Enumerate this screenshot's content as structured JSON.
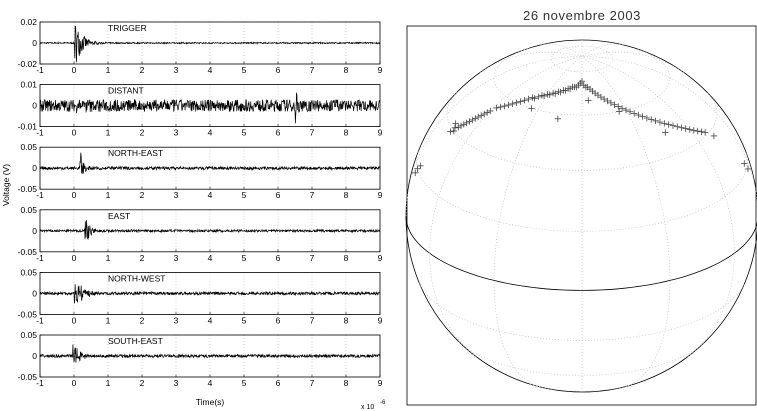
{
  "chart_data": [
    {
      "type": "line",
      "xlabel": "Time(s)",
      "ylabel": "Voltage (V)",
      "x_multiplier": "x 10",
      "x_multiplier_exp": "-6",
      "xlim": [
        -1,
        9
      ],
      "x_ticks": [
        "-1",
        "0",
        "1",
        "2",
        "3",
        "4",
        "5",
        "6",
        "7",
        "8",
        "9"
      ],
      "panels": [
        {
          "name": "TRIGGER",
          "ylim": [
            -0.02,
            0.02
          ],
          "y_ticks": [
            "0.02",
            "0",
            "-0.02"
          ],
          "noise": 0.0004,
          "bursts": [
            {
              "t": 0.05,
              "amp": 0.02,
              "decay": 0.22
            }
          ]
        },
        {
          "name": "DISTANT",
          "ylim": [
            -0.01,
            0.01
          ],
          "y_ticks": [
            "0.01",
            "0",
            "-0.01"
          ],
          "noise": 0.0018,
          "bursts": [
            {
              "t": 6.55,
              "amp": 0.0065,
              "decay": 0.1
            },
            {
              "t": 0.1,
              "amp": 0.002,
              "decay": 0.5
            }
          ]
        },
        {
          "name": "NORTH-EAST",
          "ylim": [
            -0.05,
            0.05
          ],
          "y_ticks": [
            "0.05",
            "0",
            "-0.05"
          ],
          "noise": 0.0022,
          "bursts": [
            {
              "t": 0.2,
              "amp": 0.035,
              "decay": 0.1
            }
          ]
        },
        {
          "name": "EAST",
          "ylim": [
            -0.05,
            0.05
          ],
          "y_ticks": [
            "0.05",
            "0",
            "-0.05"
          ],
          "noise": 0.0018,
          "bursts": [
            {
              "t": 0.35,
              "amp": 0.04,
              "decay": 0.12
            }
          ]
        },
        {
          "name": "NORTH-WEST",
          "ylim": [
            -0.05,
            0.05
          ],
          "y_ticks": [
            "0.05",
            "0",
            "-0.05"
          ],
          "noise": 0.0022,
          "bursts": [
            {
              "t": 0.05,
              "amp": 0.03,
              "decay": 0.25
            }
          ]
        },
        {
          "name": "SOUTH-EAST",
          "ylim": [
            -0.05,
            0.05
          ],
          "y_ticks": [
            "0.05",
            "0",
            "-0.05"
          ],
          "noise": 0.0022,
          "bursts": [
            {
              "t": 0.0,
              "amp": 0.03,
              "decay": 0.18
            }
          ]
        }
      ]
    },
    {
      "type": "scatter",
      "title": "26 novembre 2003",
      "projection": "orthographic",
      "marker": "+",
      "points_lon_lat": [
        [
          -75,
          42
        ],
        [
          -73,
          41
        ],
        [
          -74,
          39
        ],
        [
          -72,
          40
        ],
        [
          -71,
          42
        ],
        [
          -70,
          43
        ],
        [
          -69,
          44
        ],
        [
          -68,
          45
        ],
        [
          -67,
          46
        ],
        [
          -66,
          47
        ],
        [
          -65,
          48
        ],
        [
          -64,
          49
        ],
        [
          -63,
          50
        ],
        [
          -62,
          51
        ],
        [
          -61,
          52
        ],
        [
          -60,
          53
        ],
        [
          -58,
          55
        ],
        [
          -56,
          56
        ],
        [
          -54,
          57
        ],
        [
          -52,
          58
        ],
        [
          -50,
          59
        ],
        [
          -48,
          60
        ],
        [
          -46,
          61
        ],
        [
          -44,
          62
        ],
        [
          -42,
          63
        ],
        [
          -40,
          64
        ],
        [
          -38,
          64
        ],
        [
          -36,
          65
        ],
        [
          -34,
          66
        ],
        [
          -32,
          66
        ],
        [
          -30,
          67
        ],
        [
          -28,
          67
        ],
        [
          -26,
          68
        ],
        [
          -24,
          68
        ],
        [
          -22,
          69
        ],
        [
          -20,
          69
        ],
        [
          -18,
          70
        ],
        [
          -16,
          70
        ],
        [
          -14,
          71
        ],
        [
          -12,
          71
        ],
        [
          -10,
          72
        ],
        [
          -8,
          72
        ],
        [
          -6,
          72
        ],
        [
          -4,
          73
        ],
        [
          -2,
          74
        ],
        [
          0,
          75
        ],
        [
          2,
          73
        ],
        [
          4,
          72
        ],
        [
          6,
          72
        ],
        [
          8,
          71
        ],
        [
          10,
          70
        ],
        [
          12,
          69
        ],
        [
          14,
          68
        ],
        [
          16,
          67
        ],
        [
          18,
          66
        ],
        [
          20,
          65
        ],
        [
          22,
          64
        ],
        [
          24,
          63
        ],
        [
          26,
          62
        ],
        [
          28,
          61
        ],
        [
          30,
          60
        ],
        [
          32,
          59
        ],
        [
          34,
          58
        ],
        [
          36,
          57
        ],
        [
          38,
          56
        ],
        [
          40,
          55
        ],
        [
          42,
          54
        ],
        [
          44,
          53
        ],
        [
          46,
          52
        ],
        [
          48,
          51
        ],
        [
          50,
          50
        ],
        [
          52,
          49
        ],
        [
          54,
          48
        ],
        [
          56,
          47
        ],
        [
          58,
          46
        ],
        [
          60,
          45
        ],
        [
          62,
          44
        ],
        [
          64,
          43
        ],
        [
          66,
          42
        ],
        [
          68,
          41
        ],
        [
          -35,
          60
        ],
        [
          -15,
          58
        ],
        [
          5,
          66
        ],
        [
          25,
          60
        ],
        [
          45,
          48
        ],
        [
          72,
          38
        ],
        [
          -82,
          22
        ],
        [
          -84,
          20
        ],
        [
          -85,
          18
        ],
        [
          84,
          22
        ],
        [
          86,
          19
        ]
      ]
    }
  ]
}
